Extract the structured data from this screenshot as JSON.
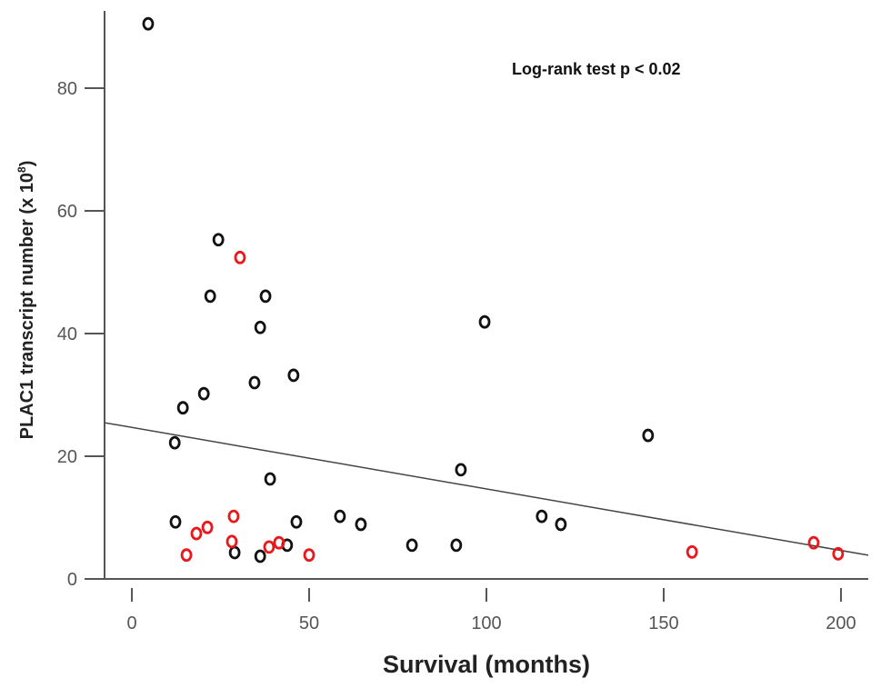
{
  "chart_data": {
    "type": "scatter",
    "title": "",
    "xlabel": "Survival  (months)",
    "ylabel": "PLAC1 transcript number  (x 10",
    "ylabel_sup": "8",
    "ylabel_close": ")",
    "annotation": "Log-rank test p < 0.02",
    "xlim": [
      -7.7,
      207.7
    ],
    "ylim": [
      0,
      92.6
    ],
    "xticks": [
      0,
      50,
      100,
      150,
      200
    ],
    "yticks": [
      0,
      20,
      40,
      60,
      80
    ],
    "grid": false,
    "colors": {
      "black": "#111111",
      "red": "#e8191c",
      "line": "#444444"
    },
    "series": [
      {
        "color": "#111111",
        "x": [
          4.6,
          24.4,
          22.1,
          37.7,
          36.2,
          99.5,
          45.6,
          34.6,
          20.3,
          14.4,
          12.1,
          145.6,
          39.0,
          92.8,
          12.3,
          46.4,
          58.7,
          64.6,
          115.6,
          121.0,
          29.0,
          36.2,
          43.8,
          79.0,
          91.5
        ],
        "y": [
          90.5,
          55.3,
          46.1,
          46.1,
          41.0,
          41.9,
          33.2,
          32.0,
          30.2,
          27.9,
          22.2,
          23.4,
          16.3,
          17.8,
          9.3,
          9.3,
          10.2,
          8.9,
          10.2,
          8.9,
          4.3,
          3.7,
          5.5,
          5.5,
          5.5
        ]
      },
      {
        "color": "#e8191c",
        "x": [
          30.5,
          18.2,
          21.3,
          28.7,
          28.2,
          15.4,
          38.7,
          41.5,
          50.0,
          158.0,
          192.3,
          199.2
        ],
        "y": [
          52.4,
          7.4,
          8.4,
          10.2,
          6.1,
          3.9,
          5.2,
          5.9,
          3.9,
          4.4,
          5.9,
          4.1
        ]
      }
    ],
    "trendline": {
      "intercept": 24.7,
      "slope": -0.1003
    }
  }
}
